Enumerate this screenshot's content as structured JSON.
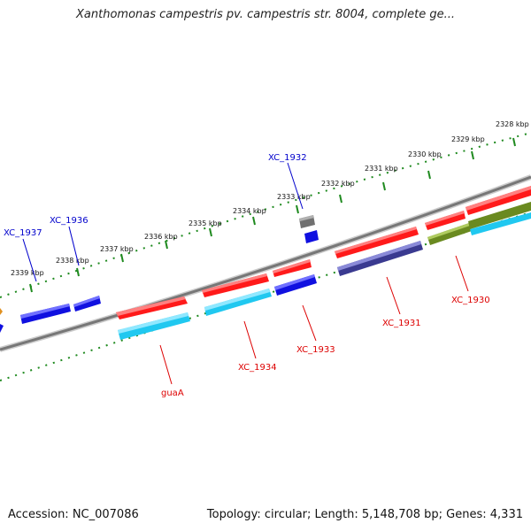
{
  "header": {
    "title": "Xanthomonas campestris pv. campestris str. 8004, complete ge..."
  },
  "footer": {
    "accession": "Accession: NC_007086",
    "summary": "Topology: circular; Length: 5,148,708 bp; Genes: 4,331"
  },
  "colors": {
    "backbone": "#8a8a8a",
    "tick": "#1f8a1f",
    "forward_gene": "#ff1a1a",
    "reverse_gene_cyan": "#20c8f0",
    "reverse_gene_blue": "#1010e0",
    "reverse_gene_navy": "#3a3a90",
    "olive_gene": "#6a8a20",
    "grey_gene": "#707070",
    "label_red": "#dd0000",
    "label_blue": "#0000cc"
  },
  "scale_labels": [
    "2328 kbp",
    "2329 kbp",
    "2330 kbp",
    "2331 kbp",
    "2332 kbp",
    "2333 kbp",
    "2334 kbp",
    "2335 kbp",
    "2336 kbp",
    "2337 kbp",
    "2338 kbp",
    "2339 kbp"
  ],
  "gene_labels": [
    {
      "text": "XC_1932",
      "color": "blue"
    },
    {
      "text": "XC_1936",
      "color": "blue"
    },
    {
      "text": "XC_1937",
      "color": "blue"
    },
    {
      "text": "XC_1930",
      "color": "red"
    },
    {
      "text": "XC_1931",
      "color": "red"
    },
    {
      "text": "XC_1933",
      "color": "red"
    },
    {
      "text": "XC_1934",
      "color": "red"
    },
    {
      "text": "guaA",
      "color": "red"
    }
  ]
}
